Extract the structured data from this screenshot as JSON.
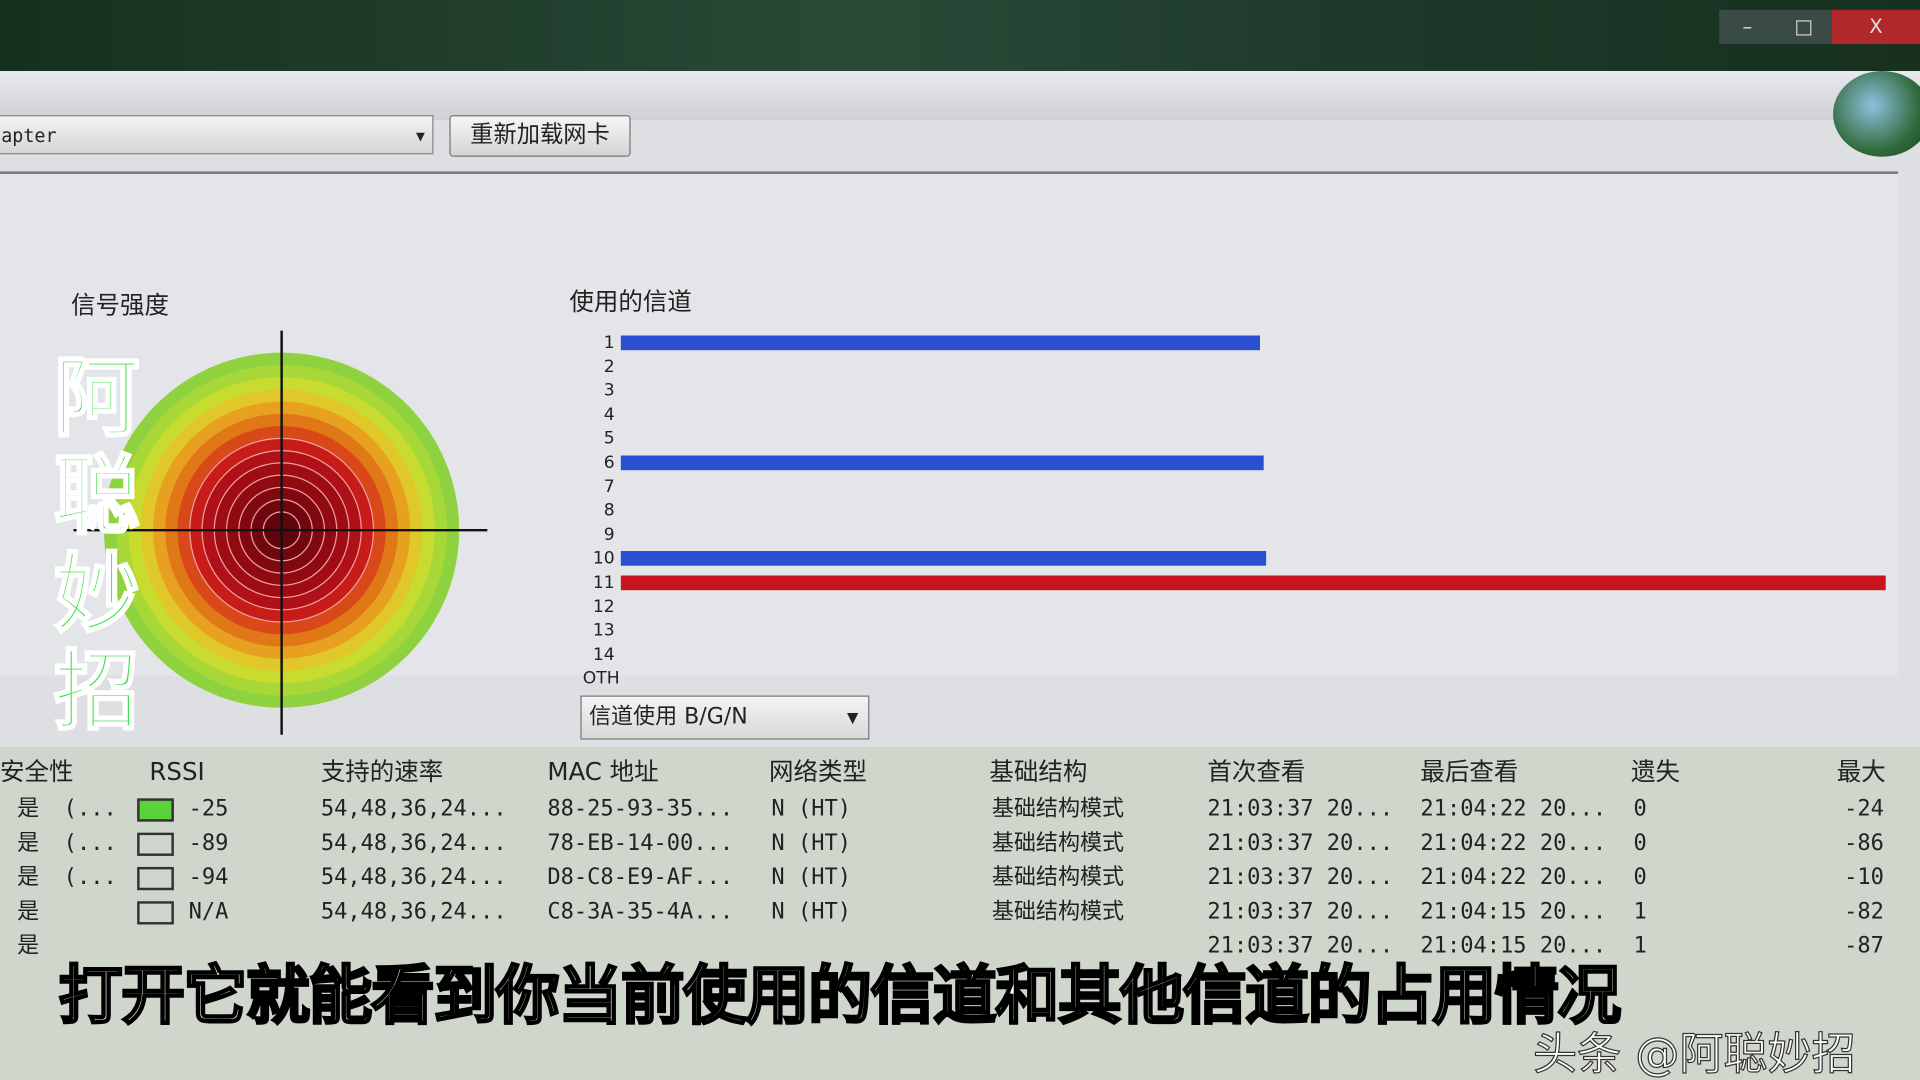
{
  "window": {
    "controls": [
      "minimize",
      "maximize",
      "close"
    ]
  },
  "toolbar": {
    "adapter_value": "apter",
    "reload_label": "重新加载网卡"
  },
  "signal": {
    "title": "信号强度"
  },
  "channels": {
    "title": "使用的信道",
    "labels": [
      "1",
      "2",
      "3",
      "4",
      "5",
      "6",
      "7",
      "8",
      "9",
      "10",
      "11",
      "12",
      "13",
      "14",
      "OTH"
    ],
    "bars": [
      {
        "channel": "1",
        "usage": 0.505,
        "color": "#2a4fd0"
      },
      {
        "channel": "6",
        "usage": 0.508,
        "color": "#2a4fd0"
      },
      {
        "channel": "10",
        "usage": 0.51,
        "color": "#2a4fd0"
      },
      {
        "channel": "11",
        "usage": 1.0,
        "color": "#c8141c"
      }
    ],
    "mode_select": "信道使用 B/G/N"
  },
  "table": {
    "headers": [
      "安全性",
      "RSSI",
      "支持的速率",
      "MAC 地址",
      "网络类型",
      "基础结构",
      "首次查看",
      "最后查看",
      "遗失",
      "最大"
    ],
    "rows": [
      [
        "是",
        "(...",
        "-25",
        "54,48,36,24...",
        "88-25-93-35...",
        "N (HT)",
        "基础结构模式",
        "21:03:37 20...",
        "21:04:22 20...",
        "0",
        "-24"
      ],
      [
        "是",
        "(...",
        "-89",
        "54,48,36,24...",
        "78-EB-14-00...",
        "N (HT)",
        "基础结构模式",
        "21:03:37 20...",
        "21:04:22 20...",
        "0",
        "-86"
      ],
      [
        "是",
        "(...",
        "-94",
        "54,48,36,24...",
        "D8-C8-E9-AF...",
        "N (HT)",
        "基础结构模式",
        "21:03:37 20...",
        "21:04:22 20...",
        "0",
        "-10"
      ],
      [
        "是",
        "",
        "N/A",
        "54,48,36,24...",
        "C8-3A-35-4A...",
        "N (HT)",
        "基础结构模式",
        "21:03:37 20...",
        "21:04:15 20...",
        "1",
        "-82"
      ],
      [
        "是",
        "",
        "",
        "",
        "",
        "",
        "",
        "21:03:37 20...",
        "21:04:15 20...",
        "1",
        "-87"
      ]
    ],
    "rssi_colors": [
      "#5ad23a",
      "none",
      "none",
      "none",
      "none"
    ]
  },
  "overlay": {
    "watermark": "阿聪妙招",
    "subtitle": "打开它就能看到你当前使用的信道和其他信道的占用情况",
    "credit": "头条 @阿聪妙招"
  }
}
